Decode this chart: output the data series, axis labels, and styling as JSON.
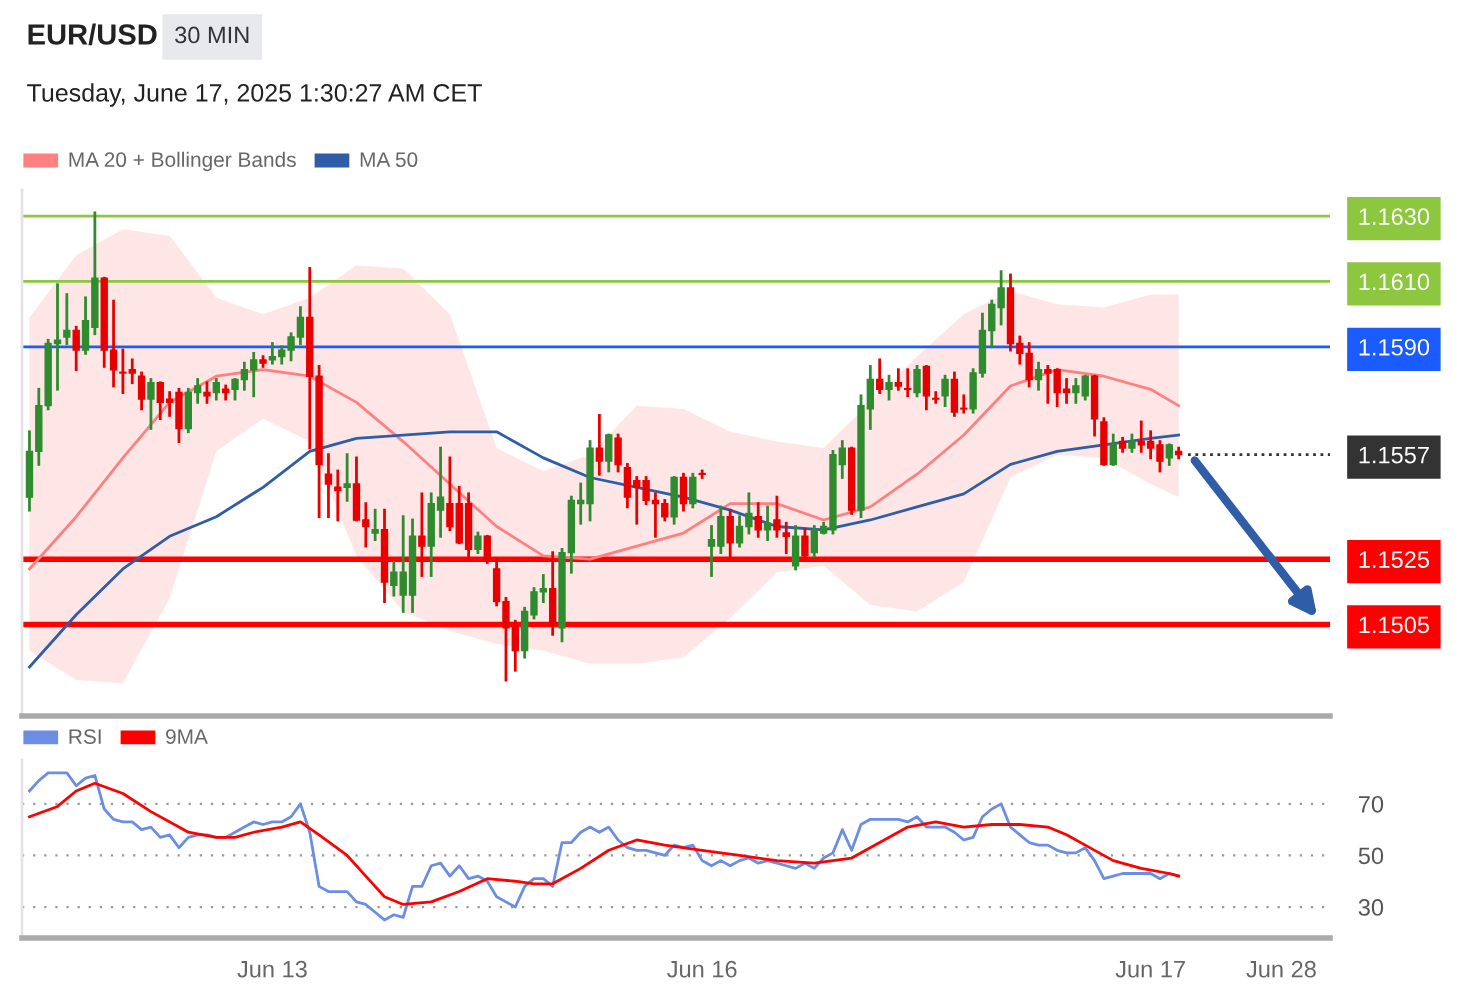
{
  "chart_data": [
    {
      "type": "candlestick",
      "title": "EUR/USD",
      "subtitle": "30 MIN",
      "annotations": [
        "Tuesday, June 17, 2025 1:30:27 AM CET"
      ],
      "categories": [
        null,
        null,
        null,
        null,
        null,
        null,
        null,
        null,
        null,
        null,
        null,
        null,
        null,
        null,
        null,
        null,
        null,
        null,
        null,
        null,
        null,
        null,
        null,
        null,
        null,
        null,
        null,
        null,
        null,
        null,
        null,
        null,
        null,
        null,
        null,
        null,
        null,
        null,
        null,
        null,
        null,
        null,
        null,
        null,
        null,
        null,
        null,
        null,
        null,
        null,
        null,
        null,
        null,
        null,
        null,
        null,
        null,
        null,
        null,
        null,
        null,
        null,
        null,
        null,
        null,
        null,
        null,
        null,
        null,
        null,
        null,
        null,
        null,
        null,
        null,
        null,
        null,
        null,
        null,
        null,
        null,
        null,
        null,
        null,
        null,
        null,
        null,
        null,
        null,
        null,
        null,
        null,
        null,
        null,
        null,
        null,
        null,
        null,
        null,
        null,
        null,
        null,
        null,
        null,
        null,
        null,
        null,
        null,
        null,
        null,
        null,
        null,
        null,
        null,
        null,
        null,
        null,
        null,
        null,
        null,
        null,
        null,
        null,
        null,
        null,
        null,
        null,
        null,
        null,
        null,
        null,
        null,
        null,
        null,
        null,
        null,
        null,
        null,
        null,
        null
      ],
      "ohlc": [
        [
          1.1544,
          1.1564,
          1.154,
          1.1558
        ],
        [
          1.1558,
          1.1577,
          1.1554,
          1.1572
        ],
        [
          1.1572,
          1.1592,
          1.1571,
          1.1591
        ],
        [
          1.1591,
          1.1609,
          1.1577,
          1.1592
        ],
        [
          1.1593,
          1.1606,
          1.1591,
          1.1595
        ],
        [
          1.1595,
          1.1596,
          1.1583,
          1.1589
        ],
        [
          1.1589,
          1.1605,
          1.1588,
          1.1598
        ],
        [
          1.1596,
          1.1631,
          1.1594,
          1.1611
        ],
        [
          1.1611,
          1.1611,
          1.1584,
          1.1589
        ],
        [
          1.1589,
          1.1604,
          1.1578,
          1.1583
        ],
        [
          1.1582,
          1.1589,
          1.1576,
          1.1582
        ],
        [
          1.1583,
          1.1586,
          1.1579,
          1.1582
        ],
        [
          1.1581,
          1.1582,
          1.1571,
          1.1574
        ],
        [
          1.1574,
          1.158,
          1.1565,
          1.1579
        ],
        [
          1.1579,
          1.1579,
          1.1568,
          1.1573
        ],
        [
          1.1574,
          1.1576,
          1.1569,
          1.1573
        ],
        [
          1.1576,
          1.1577,
          1.1561,
          1.1565
        ],
        [
          1.1565,
          1.1577,
          1.1564,
          1.1576
        ],
        [
          1.1576,
          1.158,
          1.1573,
          1.1578
        ],
        [
          1.1576,
          1.1579,
          1.1573,
          1.1575
        ],
        [
          1.1576,
          1.158,
          1.1574,
          1.1579
        ],
        [
          1.1577,
          1.1578,
          1.1574,
          1.1576
        ],
        [
          1.1577,
          1.158,
          1.1574,
          1.158
        ],
        [
          1.158,
          1.1585,
          1.1577,
          1.1583
        ],
        [
          1.1583,
          1.1588,
          1.1575,
          1.1586
        ],
        [
          1.1586,
          1.1587,
          1.1584,
          1.1585
        ],
        [
          1.1586,
          1.1591,
          1.1585,
          1.1587
        ],
        [
          1.1587,
          1.159,
          1.1585,
          1.1589
        ],
        [
          1.1589,
          1.1594,
          1.1586,
          1.1593
        ],
        [
          1.1593,
          1.1602,
          1.1591,
          1.1599
        ],
        [
          1.1599,
          1.1614,
          1.1559,
          1.1581
        ],
        [
          1.1581,
          1.1584,
          1.1538,
          1.1554
        ],
        [
          1.1551,
          1.1557,
          1.1538,
          1.1548
        ],
        [
          1.1547,
          1.1552,
          1.1537,
          1.1546
        ],
        [
          1.1547,
          1.1557,
          1.1543,
          1.1548
        ],
        [
          1.1548,
          1.1556,
          1.1537,
          1.1537
        ],
        [
          1.1537,
          1.1542,
          1.1529,
          1.1535
        ],
        [
          1.1533,
          1.154,
          1.1531,
          1.1534
        ],
        [
          1.1534,
          1.154,
          1.1512,
          1.1518
        ],
        [
          1.1517,
          1.1524,
          1.1514,
          1.1521
        ],
        [
          1.1514,
          1.1538,
          1.1509,
          1.1521
        ],
        [
          1.1514,
          1.1537,
          1.1509,
          1.1532
        ],
        [
          1.1532,
          1.1545,
          1.152,
          1.1529
        ],
        [
          1.1529,
          1.1545,
          1.152,
          1.1542
        ],
        [
          1.154,
          1.1559,
          1.1532,
          1.1544
        ],
        [
          1.1542,
          1.1556,
          1.1534,
          1.1535
        ],
        [
          1.1542,
          1.1547,
          1.153,
          1.153
        ],
        [
          1.1542,
          1.1545,
          1.1525,
          1.1528
        ],
        [
          1.1528,
          1.1533,
          1.1527,
          1.1532
        ],
        [
          1.1532,
          1.1532,
          1.1524,
          1.1525
        ],
        [
          1.1522,
          1.1525,
          1.1511,
          1.1512
        ],
        [
          1.1512,
          1.1513,
          1.1488,
          1.1504
        ],
        [
          1.1504,
          1.1506,
          1.1491,
          1.1497
        ],
        [
          1.1497,
          1.151,
          1.1495,
          1.1509
        ],
        [
          1.1508,
          1.1516,
          1.1507,
          1.1515
        ],
        [
          1.1515,
          1.152,
          1.1512,
          1.1516
        ],
        [
          1.1516,
          1.1527,
          1.1502,
          1.1505
        ],
        [
          1.1504,
          1.1528,
          1.15,
          1.1527
        ],
        [
          1.1527,
          1.1544,
          1.1521,
          1.1543
        ],
        [
          1.1542,
          1.1548,
          1.1536,
          1.1543
        ],
        [
          1.1542,
          1.1561,
          1.1537,
          1.1559
        ],
        [
          1.1559,
          1.1569,
          1.1551,
          1.1555
        ],
        [
          1.1555,
          1.1563,
          1.1552,
          1.1563
        ],
        [
          1.1562,
          1.1563,
          1.1552,
          1.1554
        ],
        [
          1.1553,
          1.1554,
          1.1541,
          1.1544
        ],
        [
          1.1549,
          1.155,
          1.1536,
          1.1547
        ],
        [
          1.1549,
          1.155,
          1.1542,
          1.1543
        ],
        [
          1.1543,
          1.1545,
          1.1532,
          1.1542
        ],
        [
          1.1542,
          1.1543,
          1.1537,
          1.1538
        ],
        [
          1.1538,
          1.155,
          1.1536,
          1.155
        ],
        [
          1.155,
          1.1551,
          1.154,
          1.1542
        ],
        [
          1.1542,
          1.1551,
          1.1541,
          1.155
        ],
        [
          1.1551,
          1.1552,
          1.155,
          1.1551
        ],
        [
          1.1529,
          1.1535,
          1.152,
          1.1531
        ],
        [
          1.1529,
          1.1541,
          1.1527,
          1.1538
        ],
        [
          1.1538,
          1.154,
          1.1526,
          1.153
        ],
        [
          1.153,
          1.1538,
          1.1529,
          1.1535
        ],
        [
          1.1535,
          1.1545,
          1.1533,
          1.1539
        ],
        [
          1.1538,
          1.1542,
          1.1532,
          1.1534
        ],
        [
          1.1534,
          1.1541,
          1.1531,
          1.1536
        ],
        [
          1.1537,
          1.1544,
          1.1532,
          1.1534
        ],
        [
          1.1533,
          1.1536,
          1.1527,
          1.1532
        ],
        [
          1.1523,
          1.1535,
          1.1522,
          1.1532
        ],
        [
          1.1532,
          1.1534,
          1.1525,
          1.1526
        ],
        [
          1.1527,
          1.1535,
          1.1526,
          1.1534
        ],
        [
          1.1533,
          1.1536,
          1.1533,
          1.1535
        ],
        [
          1.1534,
          1.1558,
          1.1533,
          1.1557
        ],
        [
          1.1554,
          1.1561,
          1.155,
          1.1559
        ],
        [
          1.1559,
          1.1559,
          1.1539,
          1.154
        ],
        [
          1.154,
          1.1575,
          1.1538,
          1.1572
        ],
        [
          1.1571,
          1.1584,
          1.1565,
          1.158
        ],
        [
          1.158,
          1.1586,
          1.1576,
          1.1577
        ],
        [
          1.1577,
          1.1581,
          1.1574,
          1.1579
        ],
        [
          1.1579,
          1.1583,
          1.1577,
          1.1578
        ],
        [
          1.1577,
          1.1583,
          1.1575,
          1.1577
        ],
        [
          1.1576,
          1.1584,
          1.1575,
          1.1583
        ],
        [
          1.1584,
          1.1584,
          1.1571,
          1.1575
        ],
        [
          1.1574,
          1.1576,
          1.1573,
          1.1574
        ],
        [
          1.1575,
          1.1581,
          1.1572,
          1.158
        ],
        [
          1.158,
          1.1582,
          1.1569,
          1.157
        ],
        [
          1.1571,
          1.1575,
          1.157,
          1.1571
        ],
        [
          1.1571,
          1.1583,
          1.157,
          1.1582
        ],
        [
          1.1582,
          1.16,
          1.1581,
          1.1595
        ],
        [
          1.1595,
          1.1604,
          1.159,
          1.1603
        ],
        [
          1.1602,
          1.1613,
          1.1597,
          1.1608
        ],
        [
          1.1608,
          1.1612,
          1.1589,
          1.1591
        ],
        [
          1.1591,
          1.1593,
          1.1585,
          1.1588
        ],
        [
          1.1588,
          1.1591,
          1.1578,
          1.158
        ],
        [
          1.158,
          1.1585,
          1.1577,
          1.1583
        ],
        [
          1.1583,
          1.1584,
          1.1573,
          1.1582
        ],
        [
          1.1583,
          1.1583,
          1.1572,
          1.1576
        ],
        [
          1.1577,
          1.158,
          1.1573,
          1.1576
        ],
        [
          1.1576,
          1.158,
          1.1573,
          1.1578
        ],
        [
          1.1575,
          1.1581,
          1.1574,
          1.1581
        ],
        [
          1.1581,
          1.1581,
          1.1563,
          1.1568
        ],
        [
          1.1567,
          1.1568,
          1.1554,
          1.1554
        ],
        [
          1.1554,
          1.1563,
          1.1554,
          1.156
        ],
        [
          1.1561,
          1.1562,
          1.1558,
          1.1559
        ],
        [
          1.1559,
          1.1563,
          1.1558,
          1.1561
        ],
        [
          1.1561,
          1.1567,
          1.1558,
          1.156
        ],
        [
          1.1561,
          1.1564,
          1.1556,
          1.1559
        ],
        [
          1.156,
          1.1561,
          1.1552,
          1.1555
        ],
        [
          1.1556,
          1.156,
          1.1554,
          1.156
        ],
        [
          1.1558,
          1.1559,
          1.1556,
          1.1557
        ],
        null,
        null,
        null,
        null,
        null,
        null,
        null,
        null,
        null,
        null,
        null,
        null,
        null,
        null,
        null,
        null
      ],
      "colors": [
        "#2e8b2e",
        "#2e8b2e",
        "#2e8b2e",
        "#2e8b2e",
        "#2e8b2e",
        "#e60000",
        "#2e8b2e",
        "#2e8b2e",
        "#e60000",
        "#e60000",
        "#e60000",
        "#e60000",
        "#e60000",
        "#2e8b2e",
        "#e60000",
        "#e60000",
        "#e60000",
        "#2e8b2e",
        "#2e8b2e",
        "#e60000",
        "#2e8b2e",
        "#e60000",
        "#2e8b2e",
        "#2e8b2e",
        "#2e8b2e",
        "#e60000",
        "#2e8b2e",
        "#2e8b2e",
        "#2e8b2e",
        "#2e8b2e",
        "#e60000",
        "#e60000",
        "#e60000",
        "#e60000",
        "#2e8b2e",
        "#e60000",
        "#e60000",
        "#2e8b2e",
        "#e60000",
        "#2e8b2e",
        "#2e8b2e",
        "#2e8b2e",
        "#e60000",
        "#2e8b2e",
        "#2e8b2e",
        "#e60000",
        "#e60000",
        "#e60000",
        "#2e8b2e",
        "#e60000",
        "#e60000",
        "#e60000",
        "#e60000",
        "#2e8b2e",
        "#2e8b2e",
        "#2e8b2e",
        "#e60000",
        "#2e8b2e",
        "#2e8b2e",
        "#2e8b2e",
        "#2e8b2e",
        "#e60000",
        "#2e8b2e",
        "#e60000",
        "#e60000",
        "#e60000",
        "#e60000",
        "#e60000",
        "#e60000",
        "#2e8b2e",
        "#e60000",
        "#2e8b2e",
        "#e60000",
        "#2e8b2e",
        "#2e8b2e",
        "#e60000",
        "#2e8b2e",
        "#2e8b2e",
        "#e60000",
        "#2e8b2e",
        "#e60000",
        "#e60000",
        "#2e8b2e",
        "#e60000",
        "#2e8b2e",
        "#2e8b2e",
        "#2e8b2e",
        "#2e8b2e",
        "#e60000",
        "#2e8b2e",
        "#2e8b2e",
        "#e60000",
        "#2e8b2e",
        "#e60000",
        "#e60000",
        "#2e8b2e",
        "#e60000",
        "#e60000",
        "#2e8b2e",
        "#e60000",
        "#e60000",
        "#2e8b2e",
        "#2e8b2e",
        "#2e8b2e",
        "#2e8b2e",
        "#e60000",
        "#e60000",
        "#e60000",
        "#2e8b2e",
        "#e60000",
        "#e60000",
        "#e60000",
        "#2e8b2e",
        "#2e8b2e",
        "#e60000",
        "#e60000",
        "#2e8b2e",
        "#e60000",
        "#2e8b2e",
        "#e60000",
        "#e60000",
        "#e60000",
        "#2e8b2e",
        "#e60000",
        null,
        null,
        null,
        null,
        null,
        null,
        null,
        null,
        null,
        null,
        null,
        null,
        null,
        null,
        null,
        null
      ],
      "series": [
        {
          "name": "MA 20 + Bollinger Bands",
          "type": "line",
          "color": "#ff8080",
          "values": [
            1.1522,
            null,
            null,
            null,
            null,
            1.1538,
            null,
            null,
            null,
            null,
            1.1556,
            null,
            null,
            null,
            null,
            1.1573,
            null,
            null,
            null,
            null,
            1.1581,
            null,
            null,
            null,
            null,
            1.1583,
            null,
            null,
            null,
            null,
            1.1581,
            null,
            null,
            null,
            null,
            1.1573,
            null,
            null,
            null,
            null,
            1.1561,
            null,
            null,
            null,
            null,
            1.1548,
            null,
            null,
            null,
            null,
            1.1535,
            null,
            null,
            null,
            null,
            1.1526,
            null,
            null,
            null,
            null,
            1.1525,
            null,
            null,
            null,
            null,
            1.1529,
            null,
            null,
            null,
            null,
            1.1533,
            null,
            null,
            null,
            null,
            1.1542,
            null,
            null,
            null,
            null,
            1.1542,
            null,
            null,
            null,
            null,
            1.1537,
            null,
            null,
            null,
            null,
            1.1541,
            null,
            null,
            null,
            null,
            1.1551,
            null,
            null,
            null,
            null,
            1.1563,
            null,
            null,
            null,
            null,
            1.1578,
            null,
            null,
            null,
            null,
            1.1583,
            null,
            null,
            null,
            null,
            1.1581,
            null,
            null,
            null,
            null,
            1.1577,
            null,
            null,
            1.1572,
            null,
            null,
            null,
            null,
            null,
            null,
            null,
            null,
            null,
            null,
            null,
            null,
            null,
            null,
            null,
            null
          ],
          "upper": [
            1.1599,
            null,
            null,
            null,
            null,
            1.1618,
            null,
            null,
            null,
            null,
            1.1626,
            null,
            null,
            null,
            null,
            1.1624,
            null,
            null,
            null,
            null,
            1.1605,
            null,
            null,
            null,
            null,
            1.16,
            null,
            null,
            null,
            null,
            1.1605,
            null,
            null,
            null,
            null,
            1.1615,
            null,
            null,
            null,
            null,
            1.1614,
            null,
            null,
            null,
            null,
            1.16,
            null,
            null,
            null,
            null,
            1.1559,
            null,
            null,
            null,
            null,
            1.1552,
            null,
            null,
            null,
            null,
            1.1557,
            null,
            null,
            null,
            null,
            1.1572,
            null,
            null,
            null,
            null,
            1.1571,
            null,
            null,
            null,
            null,
            1.1564,
            null,
            null,
            null,
            null,
            1.1561,
            null,
            null,
            null,
            null,
            1.1559,
            null,
            null,
            null,
            null,
            1.1573,
            null,
            null,
            null,
            null,
            1.1587,
            null,
            null,
            null,
            null,
            1.16,
            null,
            null,
            null,
            null,
            1.1607,
            null,
            null,
            null,
            null,
            1.1603,
            null,
            null,
            null,
            null,
            1.1602,
            null,
            null,
            null,
            null,
            1.1606,
            null,
            null,
            1.1606,
            null,
            null,
            null,
            null,
            null,
            null,
            null,
            null,
            null,
            null,
            null,
            null,
            null,
            null,
            null,
            null
          ],
          "lower": [
            1.1497,
            null,
            null,
            null,
            null,
            1.1488,
            null,
            null,
            null,
            null,
            1.1487,
            null,
            null,
            null,
            null,
            1.1513,
            null,
            null,
            null,
            null,
            1.1558,
            null,
            null,
            null,
            null,
            1.1568,
            null,
            null,
            null,
            null,
            1.1561,
            null,
            null,
            null,
            null,
            1.1526,
            null,
            null,
            null,
            null,
            1.1509,
            null,
            null,
            null,
            null,
            1.1503,
            null,
            null,
            null,
            null,
            1.1499,
            null,
            null,
            null,
            null,
            1.1497,
            null,
            null,
            null,
            null,
            1.1493,
            null,
            null,
            null,
            null,
            1.1493,
            null,
            null,
            null,
            null,
            1.1495,
            null,
            null,
            null,
            null,
            1.1507,
            null,
            null,
            null,
            null,
            1.1521,
            null,
            null,
            null,
            null,
            1.1523,
            null,
            null,
            null,
            null,
            1.1511,
            null,
            null,
            null,
            null,
            1.1509,
            null,
            null,
            null,
            null,
            1.1518,
            null,
            null,
            null,
            null,
            1.155,
            null,
            null,
            null,
            null,
            1.1557,
            null,
            null,
            null,
            null,
            1.1556,
            null,
            null,
            null,
            null,
            1.1548,
            null,
            null,
            1.1544,
            null,
            null,
            null,
            null,
            null,
            null,
            null,
            null,
            null,
            null,
            null,
            null,
            null,
            null,
            null,
            null
          ]
        },
        {
          "name": "MA 50",
          "type": "line",
          "color": "#2f5da8",
          "values": [
            1.1492,
            null,
            null,
            null,
            null,
            1.1508,
            null,
            null,
            null,
            null,
            1.1522,
            null,
            null,
            null,
            null,
            1.1532,
            null,
            null,
            null,
            null,
            1.1538,
            null,
            null,
            null,
            null,
            1.1547,
            null,
            null,
            null,
            null,
            1.1558,
            null,
            null,
            null,
            null,
            1.1562,
            null,
            null,
            null,
            null,
            1.1563,
            null,
            null,
            null,
            null,
            1.1564,
            null,
            null,
            null,
            null,
            1.1564,
            null,
            null,
            null,
            null,
            1.1556,
            null,
            null,
            null,
            null,
            1.155,
            null,
            null,
            null,
            null,
            1.1547,
            null,
            null,
            null,
            null,
            1.1544,
            null,
            null,
            null,
            null,
            1.154,
            null,
            null,
            null,
            null,
            1.1535,
            null,
            null,
            null,
            null,
            1.1534,
            null,
            null,
            null,
            null,
            1.1537,
            null,
            null,
            null,
            null,
            1.1541,
            null,
            null,
            null,
            null,
            1.1545,
            null,
            null,
            null,
            null,
            1.1554,
            null,
            null,
            null,
            null,
            1.1558,
            null,
            null,
            null,
            null,
            1.156,
            null,
            null,
            null,
            null,
            1.1562,
            null,
            null,
            1.1563,
            null,
            null,
            null,
            null,
            null,
            null,
            null,
            null,
            null,
            null,
            null,
            null,
            null,
            null,
            null,
            null
          ]
        }
      ],
      "ylim": [
        1.1477,
        1.1638
      ],
      "yticks": [
        {
          "value": 1.1505,
          "label": "1.1505"
        },
        {
          "value": 1.1525,
          "label": "1.1525"
        },
        {
          "value": 1.1557,
          "label": "1.1557"
        },
        {
          "value": 1.159,
          "label": "1.1590"
        },
        {
          "value": 1.161,
          "label": "1.1610"
        },
        {
          "value": 1.163,
          "label": "1.1630"
        }
      ],
      "ref_lines": [
        {
          "axis": "y",
          "value": 1.163,
          "color": "#8dc63f",
          "line_style": "solid"
        },
        {
          "axis": "y",
          "value": 1.161,
          "color": "#8dc63f",
          "line_style": "solid"
        },
        {
          "axis": "y",
          "value": 1.159,
          "color": "#1a5cff",
          "line_style": "solid"
        },
        {
          "axis": "y",
          "value": 1.1557,
          "color": "#333333",
          "line_style": "dotted"
        },
        {
          "axis": "y",
          "value": 1.1525,
          "color": "#ff0000",
          "line_style": "solid"
        },
        {
          "axis": "y",
          "value": 1.1505,
          "color": "#ff0000",
          "line_style": "solid"
        }
      ],
      "legend": "top left",
      "tick_labels": "y"
    },
    {
      "type": "line",
      "categories": [
        null,
        null,
        null,
        null,
        null,
        null,
        null,
        null,
        null,
        null,
        null,
        null,
        null,
        null,
        null,
        null,
        null,
        null,
        null,
        null,
        null,
        null,
        null,
        null,
        null,
        null,
        "Jun 13",
        null,
        null,
        null,
        null,
        null,
        null,
        null,
        null,
        null,
        null,
        null,
        null,
        null,
        null,
        null,
        null,
        null,
        null,
        null,
        null,
        null,
        null,
        null,
        null,
        null,
        null,
        null,
        null,
        null,
        null,
        null,
        null,
        null,
        null,
        null,
        null,
        null,
        null,
        null,
        null,
        null,
        null,
        null,
        null,
        null,
        "Jun 16",
        null,
        null,
        null,
        null,
        null,
        null,
        null,
        null,
        null,
        null,
        null,
        null,
        null,
        null,
        null,
        null,
        null,
        null,
        null,
        null,
        null,
        null,
        null,
        null,
        null,
        null,
        null,
        null,
        null,
        null,
        null,
        null,
        null,
        null,
        null,
        null,
        null,
        null,
        null,
        null,
        null,
        null,
        null,
        null,
        null,
        null,
        null,
        "Jun 17",
        null,
        null,
        null,
        null,
        null,
        null,
        null,
        null,
        null,
        null,
        null,
        null,
        null,
        "Jun 28",
        null,
        null,
        null,
        null,
        null
      ],
      "series": [
        {
          "name": "RSI",
          "color": "#6b8de3",
          "values": [
            75,
            79,
            82,
            82,
            82,
            77,
            80,
            81,
            68,
            64,
            63,
            63,
            60,
            61,
            57,
            58,
            53,
            57,
            58,
            58,
            57,
            57,
            59,
            61,
            63,
            62,
            63,
            63,
            65,
            70,
            59,
            38,
            36,
            36,
            36,
            32,
            31,
            28,
            25,
            27,
            26,
            38,
            38,
            46,
            47,
            42,
            46,
            41,
            42,
            40,
            34,
            32,
            30,
            38,
            41,
            41,
            38,
            55,
            55,
            59,
            61,
            59,
            61,
            56,
            53,
            52,
            52,
            51,
            50,
            54,
            53,
            54,
            48,
            46,
            48,
            46,
            48,
            49,
            47,
            48,
            47,
            46,
            45,
            47,
            45,
            49,
            51,
            60,
            52,
            62,
            64,
            64,
            64,
            64,
            63,
            65,
            61,
            61,
            61,
            59,
            56,
            57,
            65,
            68,
            70,
            61,
            58,
            55,
            54,
            54,
            52,
            51,
            51,
            53,
            48,
            41,
            42,
            43,
            43,
            43,
            43,
            41,
            43,
            42,
            null,
            null,
            null,
            null,
            null,
            null,
            null,
            null,
            null,
            null,
            null,
            null,
            null,
            null,
            null,
            null
          ]
        },
        {
          "name": "9MA",
          "color": "#ff0000",
          "values": [
            65,
            null,
            null,
            69,
            null,
            75,
            null,
            78,
            null,
            null,
            74,
            null,
            null,
            67,
            null,
            null,
            61,
            59,
            null,
            null,
            57,
            null,
            57,
            null,
            59,
            null,
            null,
            61,
            null,
            63,
            null,
            58,
            null,
            null,
            50,
            null,
            42,
            null,
            34,
            null,
            31,
            null,
            null,
            32,
            null,
            null,
            36,
            null,
            null,
            41,
            null,
            null,
            40,
            null,
            39,
            null,
            39,
            null,
            null,
            45,
            null,
            null,
            52,
            null,
            null,
            56,
            null,
            null,
            54,
            null,
            null,
            null,
            52,
            null,
            null,
            null,
            50,
            null,
            null,
            null,
            48,
            null,
            null,
            null,
            47,
            null,
            null,
            null,
            49,
            null,
            null,
            55,
            null,
            null,
            61,
            null,
            null,
            63,
            null,
            null,
            61,
            null,
            null,
            62,
            null,
            null,
            62,
            null,
            null,
            61,
            null,
            58,
            null,
            54,
            null,
            null,
            48,
            null,
            null,
            45,
            null,
            null,
            43,
            42,
            null,
            null,
            null,
            null,
            null,
            null,
            null,
            null,
            null,
            null,
            null,
            null,
            null,
            null,
            null,
            null
          ]
        }
      ],
      "ylim": [
        18,
        87
      ],
      "yticks": [
        30,
        50,
        70
      ],
      "grid": "y",
      "legend": "top left"
    }
  ]
}
